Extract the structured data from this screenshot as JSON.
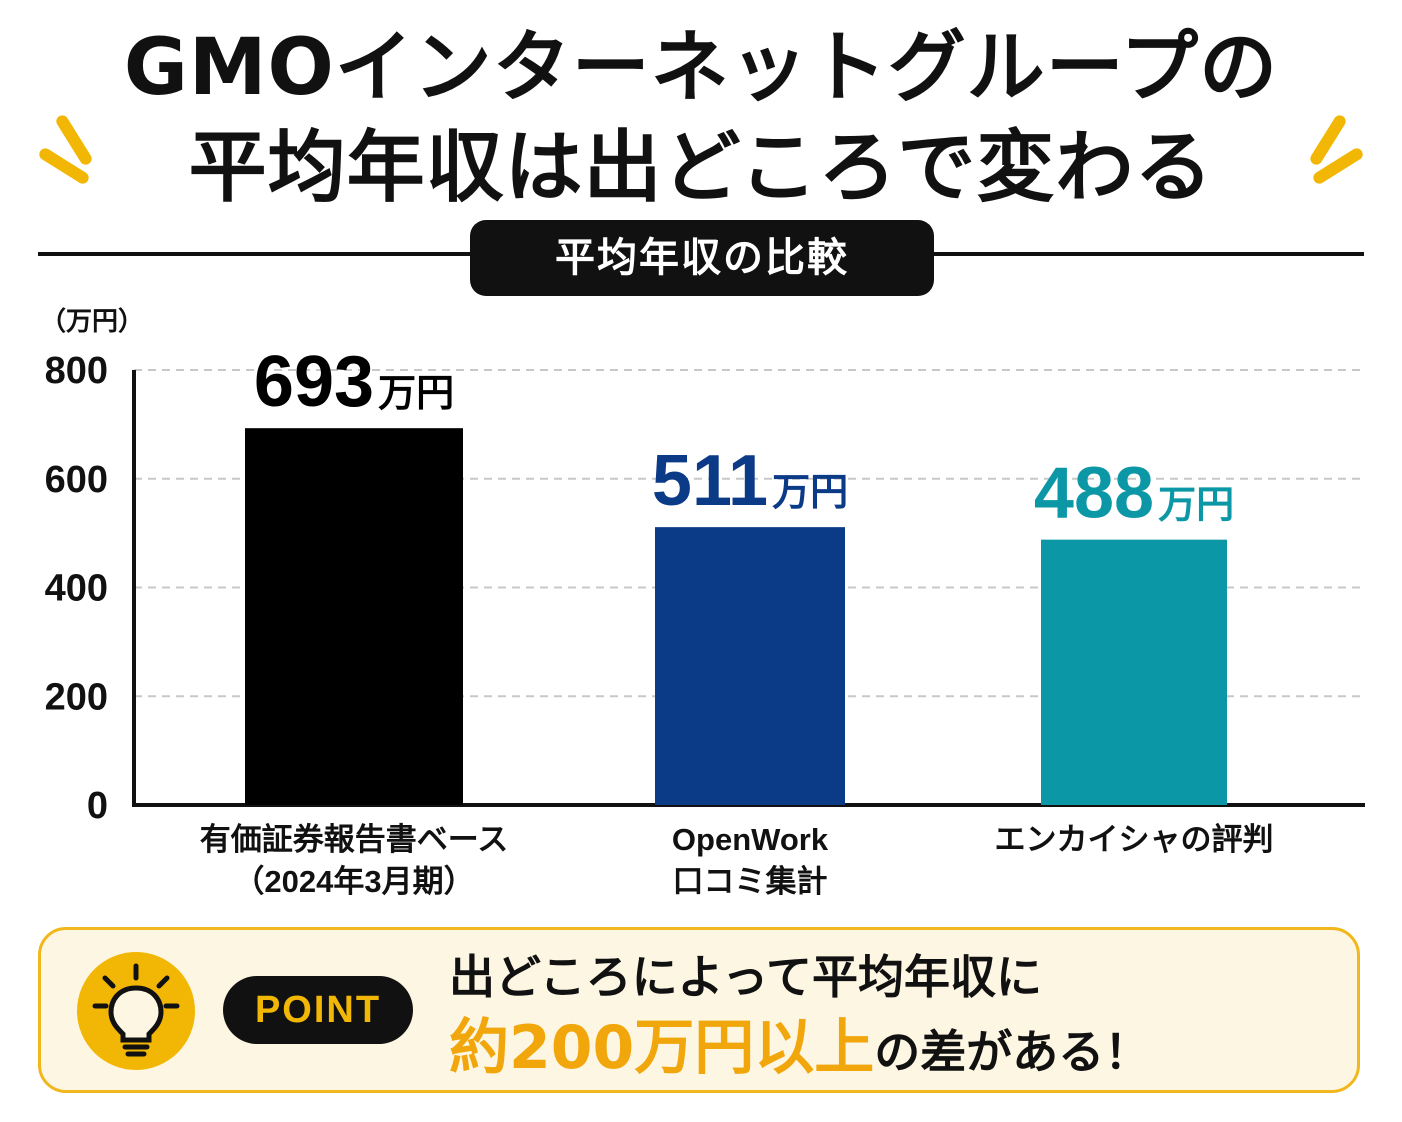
{
  "header": {
    "title_line1": "GMOインターネットグループの",
    "title_line2": "平均年収は出どころで変わる",
    "subtitle": "平均年収の比較"
  },
  "colors": {
    "accent_yellow": "#f2b705",
    "bar_black": "#000000",
    "bar_navy": "#0b3a87",
    "bar_teal": "#0b97a6"
  },
  "chart_data": {
    "type": "bar",
    "title": "平均年収の比較",
    "unit_label": "（万円）",
    "ylim": [
      0,
      800
    ],
    "yticks": [
      0,
      200,
      400,
      600,
      800
    ],
    "grid": true,
    "categories": [
      [
        "有価証券報告書ベース",
        "（2024年3月期）"
      ],
      [
        "OpenWork",
        "口コミ集計"
      ],
      [
        "エンカイシャの評判"
      ]
    ],
    "values": [
      693,
      511,
      488
    ],
    "value_labels": [
      "693",
      "511",
      "488"
    ],
    "value_unit": "万円",
    "bar_colors": [
      "#000000",
      "#0b3a87",
      "#0b97a6"
    ]
  },
  "point": {
    "badge": "POINT",
    "line1": "出どころによって平均年収に",
    "highlight": "約200万円以上",
    "rest": "の差がある！",
    "icon": "lightbulb-icon"
  }
}
